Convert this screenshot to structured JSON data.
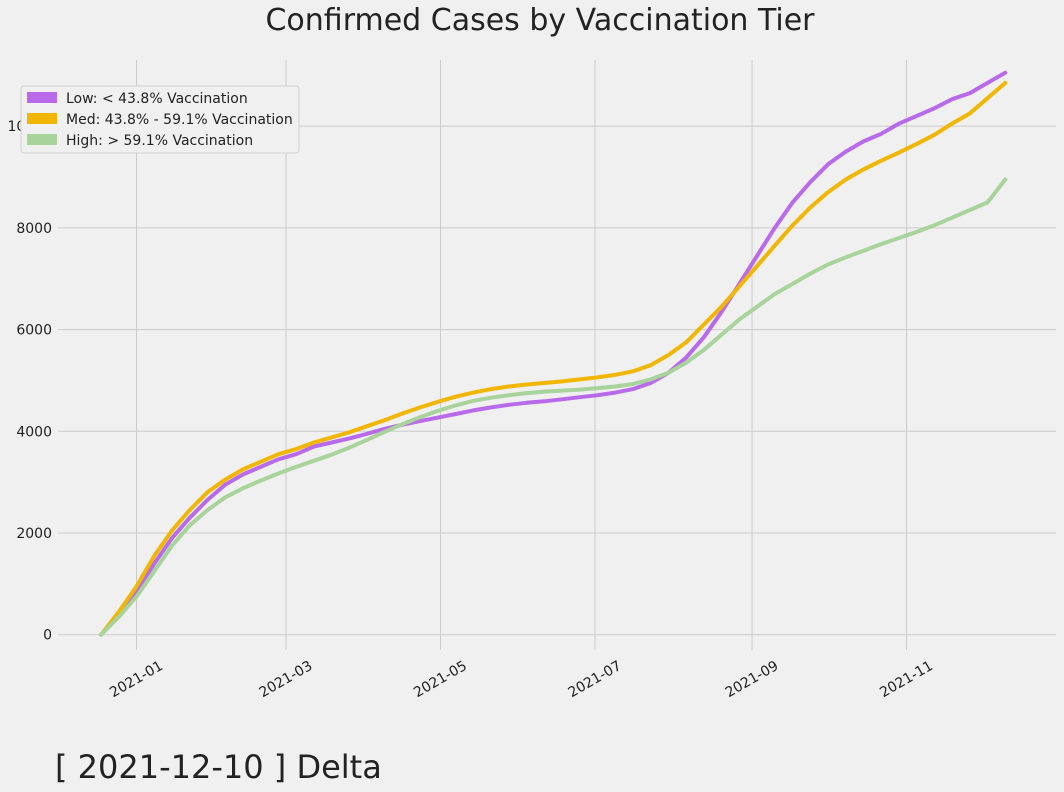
{
  "chart_data": {
    "type": "line",
    "title": "Confirmed Cases by Vaccination Tier",
    "caption": "[ 2021-12-10 ] Delta",
    "xlabel": "",
    "ylabel": "",
    "x_ticks": [
      "2021-01",
      "2021-03",
      "2021-05",
      "2021-07",
      "2021-09",
      "2021-11"
    ],
    "y_ticks": [
      "0",
      "2000",
      "4000",
      "6000",
      "8000",
      "10000"
    ],
    "xlim": [
      "2020-12-01",
      "2021-12-30"
    ],
    "ylim": [
      -300,
      11300
    ],
    "grid": true,
    "legend_position": "upper-left",
    "x": [
      "2020-12-18",
      "2020-12-25",
      "2021-01-01",
      "2021-01-08",
      "2021-01-15",
      "2021-01-22",
      "2021-01-29",
      "2021-02-05",
      "2021-02-12",
      "2021-02-19",
      "2021-02-26",
      "2021-03-05",
      "2021-03-12",
      "2021-03-19",
      "2021-03-26",
      "2021-04-02",
      "2021-04-09",
      "2021-04-16",
      "2021-04-23",
      "2021-04-30",
      "2021-05-07",
      "2021-05-14",
      "2021-05-21",
      "2021-05-28",
      "2021-06-04",
      "2021-06-11",
      "2021-06-18",
      "2021-06-25",
      "2021-07-02",
      "2021-07-09",
      "2021-07-16",
      "2021-07-23",
      "2021-07-30",
      "2021-08-06",
      "2021-08-13",
      "2021-08-20",
      "2021-08-27",
      "2021-09-03",
      "2021-09-10",
      "2021-09-17",
      "2021-09-24",
      "2021-10-01",
      "2021-10-08",
      "2021-10-15",
      "2021-10-22",
      "2021-10-29",
      "2021-11-05",
      "2021-11-12",
      "2021-11-19",
      "2021-11-26",
      "2021-12-03",
      "2021-12-10"
    ],
    "series": [
      {
        "name": "Low: < 43.8% Vaccination",
        "color": "#b86aea",
        "values": [
          0,
          400,
          850,
          1400,
          1900,
          2300,
          2650,
          2950,
          3150,
          3300,
          3450,
          3550,
          3700,
          3780,
          3860,
          3950,
          4050,
          4130,
          4200,
          4270,
          4340,
          4410,
          4470,
          4520,
          4560,
          4590,
          4630,
          4670,
          4710,
          4760,
          4830,
          4950,
          5150,
          5450,
          5850,
          6350,
          6900,
          7450,
          8000,
          8500,
          8900,
          9250,
          9500,
          9700,
          9850,
          10050,
          10200,
          10350,
          10530,
          10650,
          10850,
          11050
        ]
      },
      {
        "name": "Med: 43.8% - 59.1% Vaccination",
        "color": "#f0b600",
        "values": [
          0,
          450,
          950,
          1550,
          2050,
          2450,
          2800,
          3050,
          3250,
          3400,
          3550,
          3650,
          3780,
          3880,
          3980,
          4100,
          4220,
          4350,
          4470,
          4580,
          4680,
          4760,
          4830,
          4880,
          4920,
          4950,
          4980,
          5020,
          5060,
          5110,
          5180,
          5300,
          5500,
          5750,
          6100,
          6450,
          6850,
          7250,
          7650,
          8050,
          8400,
          8700,
          8950,
          9150,
          9320,
          9480,
          9650,
          9830,
          10050,
          10250,
          10550,
          10850
        ]
      },
      {
        "name": "High: > 59.1%  Vaccination",
        "color": "#a8d39a",
        "values": [
          0,
          350,
          750,
          1250,
          1750,
          2150,
          2450,
          2700,
          2880,
          3030,
          3170,
          3300,
          3420,
          3540,
          3680,
          3830,
          3990,
          4140,
          4280,
          4400,
          4510,
          4600,
          4660,
          4710,
          4750,
          4780,
          4800,
          4820,
          4850,
          4880,
          4930,
          5020,
          5150,
          5350,
          5600,
          5900,
          6200,
          6450,
          6700,
          6900,
          7100,
          7280,
          7420,
          7550,
          7680,
          7800,
          7920,
          8050,
          8200,
          8350,
          8500,
          8950
        ]
      }
    ]
  }
}
